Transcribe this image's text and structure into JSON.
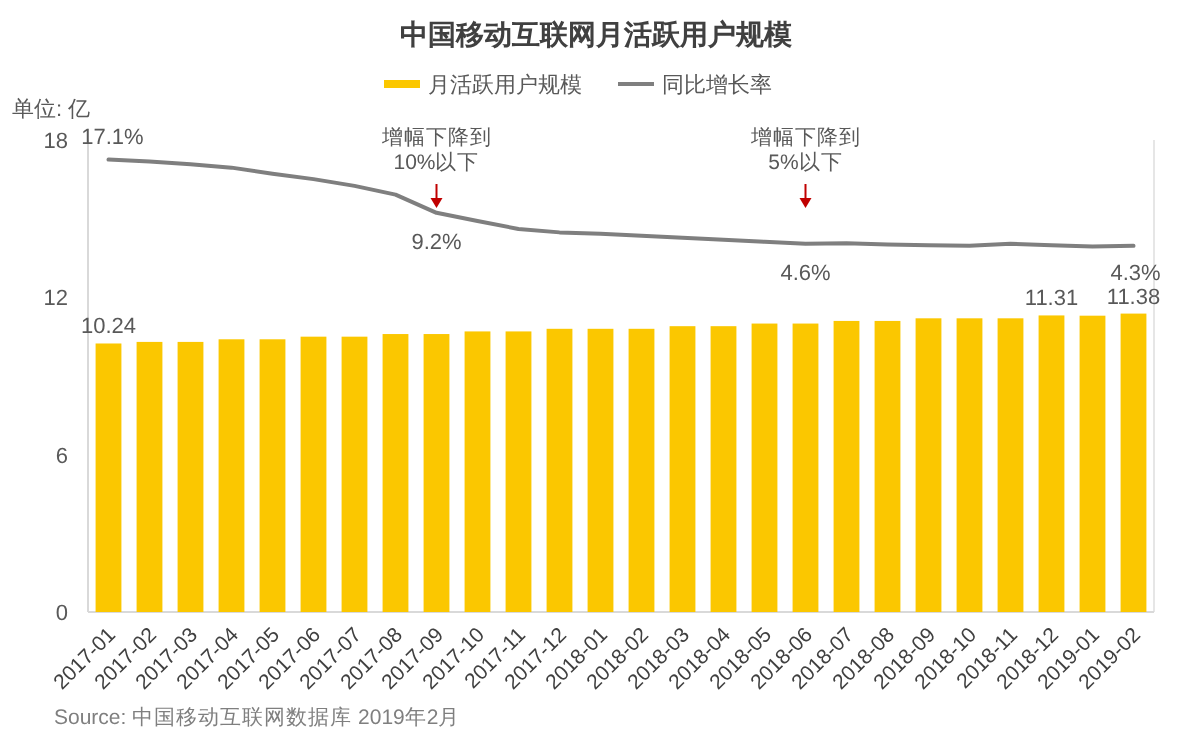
{
  "chart_data": {
    "type": "bar",
    "title": "中国移动互联网月活跃用户规模",
    "ylabel": "单位: 亿",
    "categories": [
      "2017-01",
      "2017-02",
      "2017-03",
      "2017-04",
      "2017-05",
      "2017-06",
      "2017-07",
      "2017-08",
      "2017-09",
      "2017-10",
      "2017-11",
      "2017-12",
      "2018-01",
      "2018-02",
      "2018-03",
      "2018-04",
      "2018-05",
      "2018-06",
      "2018-07",
      "2018-08",
      "2018-09",
      "2018-10",
      "2018-11",
      "2018-12",
      "2019-01",
      "2019-02"
    ],
    "series": [
      {
        "name": "月活跃用户规模",
        "color": "#fbc700",
        "values": [
          10.24,
          10.3,
          10.3,
          10.4,
          10.4,
          10.5,
          10.5,
          10.6,
          10.6,
          10.7,
          10.7,
          10.8,
          10.8,
          10.8,
          10.9,
          10.9,
          11.0,
          11.0,
          11.1,
          11.1,
          11.2,
          11.2,
          11.2,
          11.31,
          11.3,
          11.38
        ],
        "value_labels": [
          "10.24",
          null,
          null,
          null,
          null,
          null,
          null,
          null,
          null,
          null,
          null,
          null,
          null,
          null,
          null,
          null,
          null,
          null,
          null,
          null,
          null,
          null,
          null,
          "11.31",
          null,
          "11.38"
        ]
      },
      {
        "name": "同比增长率",
        "type": "line",
        "axis": "y2",
        "color": "#7f7f7f",
        "values": [
          17.1,
          16.8,
          16.4,
          15.9,
          15.0,
          14.2,
          13.2,
          11.9,
          9.2,
          8.0,
          6.8,
          6.3,
          6.1,
          5.8,
          5.5,
          5.2,
          4.9,
          4.6,
          4.7,
          4.5,
          4.4,
          4.3,
          4.6,
          4.4,
          4.2,
          4.3
        ],
        "value_labels": [
          "17.1%",
          null,
          null,
          null,
          null,
          null,
          null,
          null,
          "9.2%",
          null,
          null,
          null,
          null,
          null,
          null,
          null,
          null,
          "4.6%",
          null,
          null,
          null,
          null,
          null,
          null,
          null,
          "4.3%"
        ]
      }
    ],
    "ylim": [
      0,
      18
    ],
    "yticks": [
      0,
      6,
      12,
      18
    ],
    "y2lim": [
      -50,
      20
    ],
    "legend": "top",
    "annotations": [
      {
        "text": "增幅下降到\n10%以下",
        "x": "2017-09"
      },
      {
        "text": "增幅下降到\n5%以下",
        "x": "2018-06"
      },
      "Source: 中国移动互联网数据库 2019年2月"
    ]
  }
}
